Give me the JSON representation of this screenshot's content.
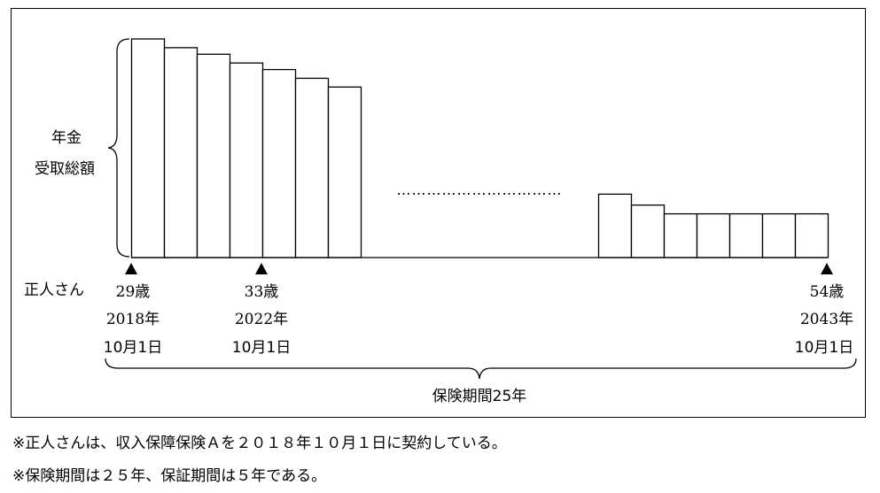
{
  "vertical_label": {
    "line1": "年金",
    "line2": "受取総額"
  },
  "person_label": "正人さん",
  "markers": [
    {
      "age": "29歳",
      "year": "2018年",
      "date": "10月1日"
    },
    {
      "age": "33歳",
      "year": "2022年",
      "date": "10月1日"
    },
    {
      "age": "54歳",
      "year": "2043年",
      "date": "10月1日"
    }
  ],
  "period_label": "保険期間25年",
  "chart_data": {
    "type": "bar",
    "description_note": "",
    "left_group_values": [
      100,
      96,
      93,
      89,
      86,
      82,
      78
    ],
    "right_group_values": [
      29,
      24,
      20,
      20,
      20,
      20,
      20
    ],
    "gap_marker": "……………………………"
  },
  "notes": [
    "※正人さんは、収入保障保険Ａを２０１８年１０月１日に契約している。",
    "※保険期間は２５年、保証期間は５年である。"
  ]
}
